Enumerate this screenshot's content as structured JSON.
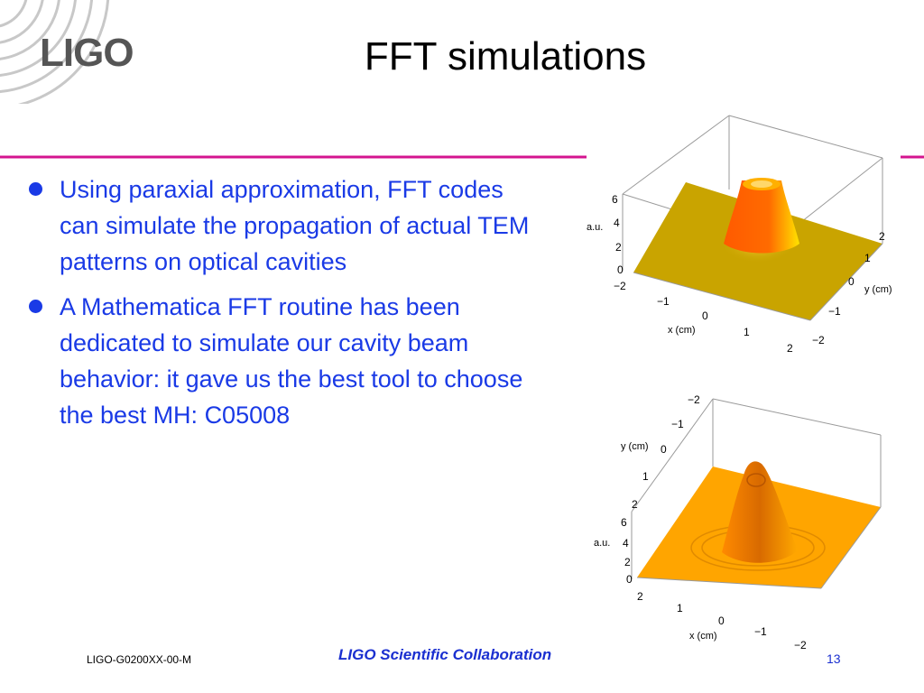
{
  "header": {
    "logo_text": "LIGO",
    "title": "FFT simulations"
  },
  "bullets": [
    "Using paraxial approximation, FFT codes can simulate the propagation of actual TEM patterns on optical cavities",
    "A Mathematica FFT routine has been dedicated to simulate our cavity beam behavior: it gave us the best tool to choose the best MH: C05008"
  ],
  "plot_top": {
    "z_label": "a.u.",
    "z_ticks": [
      "6",
      "4",
      "2",
      "0"
    ],
    "x_label": "x (cm)",
    "x_ticks": [
      "−2",
      "−1",
      "0",
      "1",
      "2"
    ],
    "y_label": "y (cm)",
    "y_ticks": [
      "2",
      "1",
      "0",
      "−1",
      "−2"
    ]
  },
  "plot_bottom": {
    "z_label": "a.u.",
    "z_ticks": [
      "6",
      "4",
      "2",
      "0"
    ],
    "x_label": "x (cm)",
    "x_ticks": [
      "2",
      "1",
      "0",
      "−1",
      "−2"
    ],
    "y_label": "y (cm)",
    "y_ticks": [
      "−2",
      "−1",
      "0",
      "1",
      "2"
    ]
  },
  "footer": {
    "doc_id": "LIGO-G0200XX-00-M",
    "collaboration": "LIGO Scientific Collaboration",
    "page_number": "13"
  },
  "colors": {
    "accent_line": "#d4148f",
    "bullet_text": "#1a3ae6",
    "top_plane": "#c9a400",
    "bottom_plane": "#ffa500"
  }
}
